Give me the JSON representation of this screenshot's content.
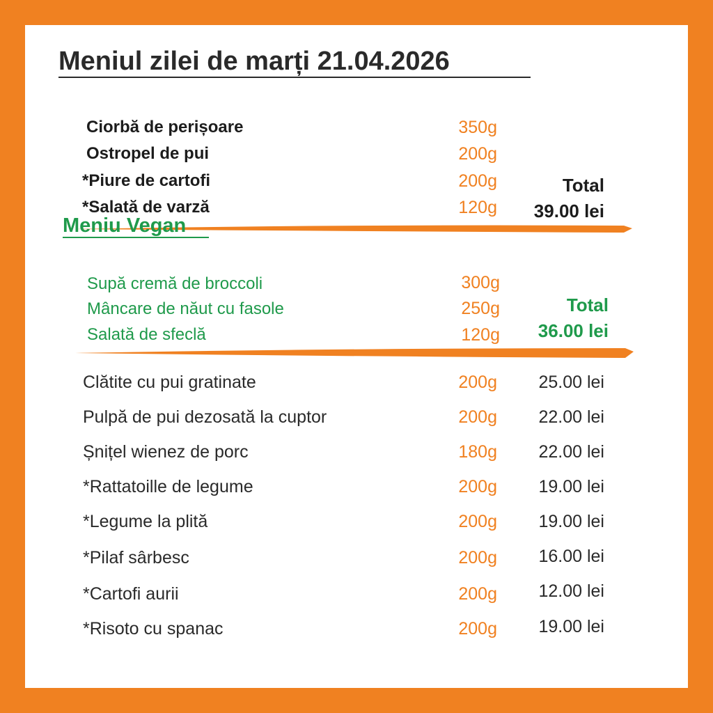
{
  "title": "Meniul zilei de marți 21.04.2026",
  "daily_menu": {
    "items": [
      {
        "name": "Ciorbă de perișoare",
        "weight": "350g"
      },
      {
        "name": "Ostropel de pui",
        "weight": "200g"
      },
      {
        "name": "*Piure de cartofi",
        "weight": "200g"
      },
      {
        "name": "*Salată de varză",
        "weight": "120g"
      }
    ],
    "total_label": "Total",
    "total_price": "39.00 lei"
  },
  "vegan_menu": {
    "title": "Meniu Vegan",
    "items": [
      {
        "name": "Supă cremă de broccoli",
        "weight": "300g"
      },
      {
        "name": "Mâncare de năut cu fasole",
        "weight": "250g"
      },
      {
        "name": "Salată de sfeclă",
        "weight": "120g"
      }
    ],
    "total_label": "Total",
    "total_price": "36.00 lei"
  },
  "a_la_carte": [
    {
      "name": "Clătite cu pui gratinate",
      "weight": "200g",
      "price": "25.00 lei"
    },
    {
      "name": "Pulpă de pui dezosată la cuptor",
      "weight": "200g",
      "price": "22.00 lei"
    },
    {
      "name": "Șnițel wienez de porc",
      "weight": "180g",
      "price": "22.00 lei"
    },
    {
      "name": "*Rattatoille de legume",
      "weight": "200g",
      "price": "19.00 lei"
    },
    {
      "name": "*Legume la plită",
      "weight": "200g",
      "price": "19.00 lei"
    },
    {
      "name": "*Pilaf sârbesc",
      "weight": "200g",
      "price": "16.00 lei"
    },
    {
      "name": "*Cartofi aurii",
      "weight": "200g",
      "price": "12.00 lei"
    },
    {
      "name": "*Risoto cu spanac",
      "weight": "200g",
      "price": "19.00 lei"
    }
  ],
  "colors": {
    "frame": "#f08121",
    "background": "#ffffff",
    "text": "#2a2a2a",
    "weight": "#f08121",
    "vegan": "#1f9a4b",
    "divider": "#f08121"
  }
}
